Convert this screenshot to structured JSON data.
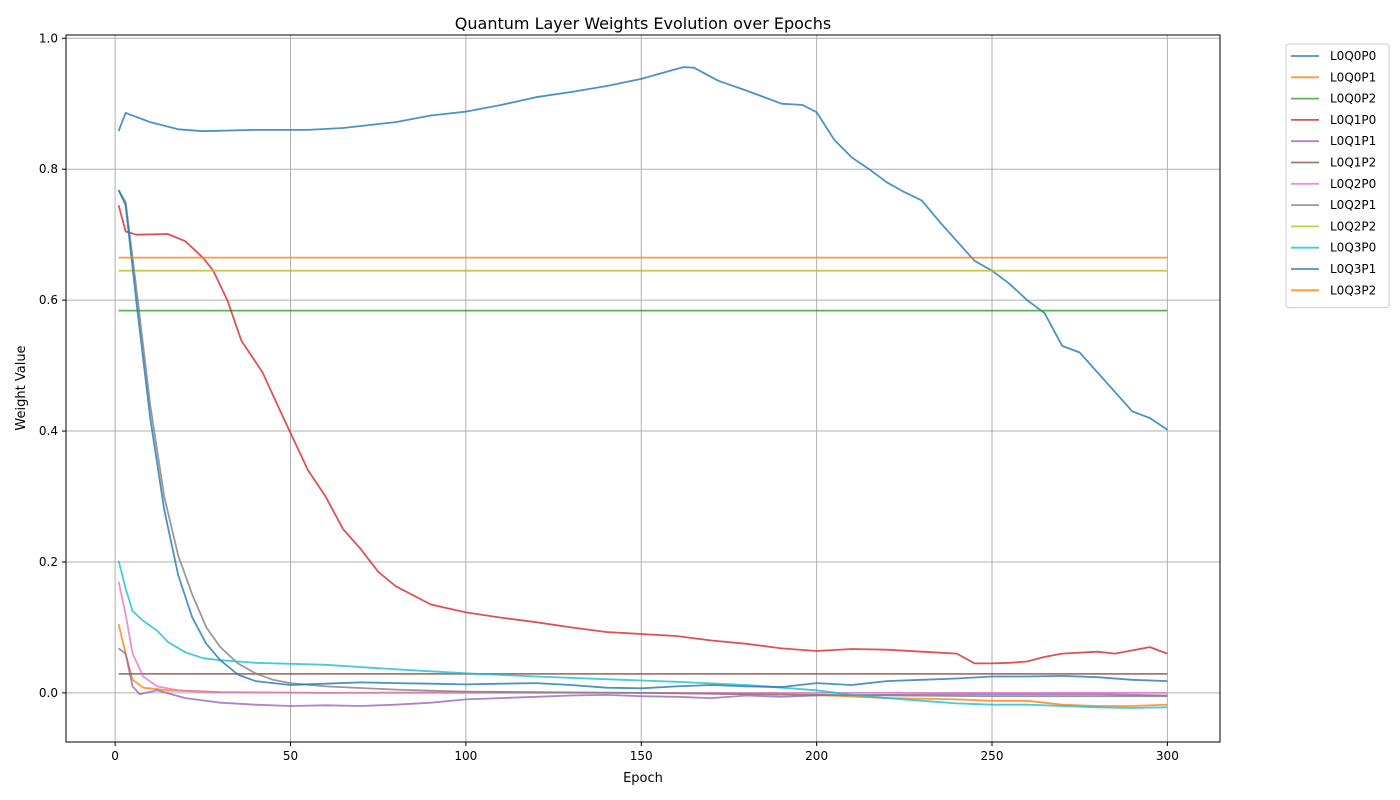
{
  "chart_data": {
    "type": "line",
    "title": "Quantum Layer Weights Evolution over Epochs",
    "xlabel": "Epoch",
    "ylabel": "Weight Value",
    "xlim": [
      -14,
      315
    ],
    "ylim": [
      -0.075,
      1.005
    ],
    "xticks": [
      0,
      50,
      100,
      150,
      200,
      250,
      300
    ],
    "yticks": [
      0.0,
      0.2,
      0.4,
      0.6,
      0.8,
      1.0
    ],
    "xtick_labels": [
      "0",
      "50",
      "100",
      "150",
      "200",
      "250",
      "300"
    ],
    "ytick_labels": [
      "0.0",
      "0.2",
      "0.4",
      "0.6",
      "0.8",
      "1.0"
    ],
    "grid": true,
    "legend_position": "outside-top-right",
    "series": [
      {
        "name": "L0Q0P0",
        "color": "#1f77b4",
        "points": [
          [
            1,
            0.858
          ],
          [
            3,
            0.886
          ],
          [
            10,
            0.872
          ],
          [
            18,
            0.861
          ],
          [
            25,
            0.858
          ],
          [
            40,
            0.86
          ],
          [
            55,
            0.86
          ],
          [
            65,
            0.863
          ],
          [
            80,
            0.872
          ],
          [
            90,
            0.882
          ],
          [
            100,
            0.888
          ],
          [
            110,
            0.898
          ],
          [
            120,
            0.91
          ],
          [
            130,
            0.918
          ],
          [
            140,
            0.927
          ],
          [
            150,
            0.938
          ],
          [
            158,
            0.95
          ],
          [
            162,
            0.956
          ],
          [
            165,
            0.955
          ],
          [
            172,
            0.935
          ],
          [
            180,
            0.92
          ],
          [
            190,
            0.9
          ],
          [
            196,
            0.898
          ],
          [
            200,
            0.887
          ],
          [
            205,
            0.845
          ],
          [
            210,
            0.818
          ],
          [
            215,
            0.8
          ],
          [
            220,
            0.78
          ],
          [
            225,
            0.765
          ],
          [
            230,
            0.752
          ],
          [
            235,
            0.72
          ],
          [
            240,
            0.69
          ],
          [
            245,
            0.66
          ],
          [
            250,
            0.645
          ],
          [
            255,
            0.625
          ],
          [
            260,
            0.6
          ],
          [
            265,
            0.58
          ],
          [
            270,
            0.53
          ],
          [
            275,
            0.52
          ],
          [
            280,
            0.49
          ],
          [
            285,
            0.46
          ],
          [
            290,
            0.43
          ],
          [
            295,
            0.42
          ],
          [
            300,
            0.402
          ]
        ]
      },
      {
        "name": "L0Q0P1",
        "color": "#ff7f0e",
        "points": [
          [
            1,
            0.105
          ],
          [
            3,
            0.06
          ],
          [
            5,
            0.02
          ],
          [
            8,
            0.008
          ],
          [
            15,
            0.004
          ],
          [
            30,
            0.001
          ],
          [
            60,
            0.0
          ],
          [
            100,
            0.001
          ],
          [
            150,
            0.0
          ],
          [
            200,
            -0.003
          ],
          [
            220,
            -0.008
          ],
          [
            240,
            -0.01
          ],
          [
            250,
            -0.012
          ],
          [
            260,
            -0.012
          ],
          [
            270,
            -0.018
          ],
          [
            280,
            -0.02
          ],
          [
            290,
            -0.02
          ],
          [
            300,
            -0.018
          ]
        ]
      },
      {
        "name": "L0Q0P2",
        "color": "#2ca02c",
        "points": [
          [
            1,
            0.584
          ],
          [
            300,
            0.584
          ]
        ]
      },
      {
        "name": "L0Q1P0",
        "color": "#d62728",
        "points": [
          [
            1,
            0.745
          ],
          [
            3,
            0.705
          ],
          [
            6,
            0.7
          ],
          [
            15,
            0.701
          ],
          [
            20,
            0.69
          ],
          [
            25,
            0.665
          ],
          [
            28,
            0.645
          ],
          [
            32,
            0.6
          ],
          [
            36,
            0.538
          ],
          [
            42,
            0.49
          ],
          [
            48,
            0.42
          ],
          [
            55,
            0.34
          ],
          [
            60,
            0.3
          ],
          [
            65,
            0.25
          ],
          [
            70,
            0.22
          ],
          [
            75,
            0.185
          ],
          [
            80,
            0.163
          ],
          [
            90,
            0.135
          ],
          [
            100,
            0.123
          ],
          [
            110,
            0.115
          ],
          [
            120,
            0.108
          ],
          [
            130,
            0.1
          ],
          [
            140,
            0.093
          ],
          [
            150,
            0.09
          ],
          [
            160,
            0.087
          ],
          [
            170,
            0.08
          ],
          [
            180,
            0.075
          ],
          [
            190,
            0.068
          ],
          [
            200,
            0.064
          ],
          [
            210,
            0.067
          ],
          [
            220,
            0.066
          ],
          [
            230,
            0.063
          ],
          [
            240,
            0.06
          ],
          [
            245,
            0.045
          ],
          [
            250,
            0.045
          ],
          [
            255,
            0.046
          ],
          [
            260,
            0.048
          ],
          [
            265,
            0.055
          ],
          [
            270,
            0.06
          ],
          [
            280,
            0.063
          ],
          [
            285,
            0.06
          ],
          [
            290,
            0.065
          ],
          [
            295,
            0.07
          ],
          [
            300,
            0.06
          ]
        ]
      },
      {
        "name": "L0Q1P1",
        "color": "#9467bd",
        "points": [
          [
            1,
            0.068
          ],
          [
            3,
            0.06
          ],
          [
            5,
            0.01
          ],
          [
            7,
            -0.002
          ],
          [
            12,
            0.004
          ],
          [
            20,
            -0.008
          ],
          [
            30,
            -0.015
          ],
          [
            40,
            -0.018
          ],
          [
            50,
            -0.02
          ],
          [
            60,
            -0.019
          ],
          [
            70,
            -0.02
          ],
          [
            80,
            -0.018
          ],
          [
            90,
            -0.015
          ],
          [
            100,
            -0.01
          ],
          [
            110,
            -0.008
          ],
          [
            120,
            -0.006
          ],
          [
            130,
            -0.004
          ],
          [
            140,
            -0.003
          ],
          [
            150,
            -0.005
          ],
          [
            160,
            -0.006
          ],
          [
            170,
            -0.008
          ],
          [
            180,
            -0.004
          ],
          [
            190,
            -0.006
          ],
          [
            200,
            -0.004
          ],
          [
            220,
            -0.003
          ],
          [
            240,
            -0.002
          ],
          [
            260,
            -0.002
          ],
          [
            280,
            -0.002
          ],
          [
            300,
            -0.004
          ]
        ]
      },
      {
        "name": "L0Q1P2",
        "color": "#8c564b",
        "points": [
          [
            1,
            0.029
          ],
          [
            300,
            0.029
          ]
        ]
      },
      {
        "name": "L0Q2P0",
        "color": "#e377c2",
        "points": [
          [
            1,
            0.17
          ],
          [
            3,
            0.12
          ],
          [
            5,
            0.06
          ],
          [
            8,
            0.025
          ],
          [
            12,
            0.01
          ],
          [
            18,
            0.004
          ],
          [
            30,
            0.001
          ],
          [
            60,
            0.0
          ],
          [
            300,
            0.0
          ]
        ]
      },
      {
        "name": "L0Q2P1",
        "color": "#7f7f7f",
        "points": [
          [
            1,
            0.768
          ],
          [
            3,
            0.75
          ],
          [
            6,
            0.62
          ],
          [
            10,
            0.44
          ],
          [
            14,
            0.3
          ],
          [
            18,
            0.21
          ],
          [
            22,
            0.15
          ],
          [
            26,
            0.1
          ],
          [
            30,
            0.07
          ],
          [
            35,
            0.045
          ],
          [
            40,
            0.03
          ],
          [
            45,
            0.02
          ],
          [
            50,
            0.015
          ],
          [
            60,
            0.01
          ],
          [
            80,
            0.005
          ],
          [
            100,
            0.002
          ],
          [
            150,
            0.0
          ],
          [
            200,
            -0.003
          ],
          [
            250,
            -0.005
          ],
          [
            300,
            -0.005
          ]
        ]
      },
      {
        "name": "L0Q2P2",
        "color": "#bcbd22",
        "points": [
          [
            1,
            0.645
          ],
          [
            300,
            0.645
          ]
        ]
      },
      {
        "name": "L0Q3P0",
        "color": "#17becf",
        "points": [
          [
            1,
            0.202
          ],
          [
            3,
            0.16
          ],
          [
            5,
            0.125
          ],
          [
            8,
            0.11
          ],
          [
            12,
            0.095
          ],
          [
            15,
            0.078
          ],
          [
            20,
            0.062
          ],
          [
            25,
            0.053
          ],
          [
            30,
            0.05
          ],
          [
            40,
            0.046
          ],
          [
            60,
            0.043
          ],
          [
            80,
            0.036
          ],
          [
            100,
            0.03
          ],
          [
            120,
            0.025
          ],
          [
            140,
            0.021
          ],
          [
            160,
            0.017
          ],
          [
            180,
            0.012
          ],
          [
            200,
            0.004
          ],
          [
            210,
            -0.003
          ],
          [
            220,
            -0.008
          ],
          [
            230,
            -0.012
          ],
          [
            240,
            -0.016
          ],
          [
            250,
            -0.018
          ],
          [
            260,
            -0.018
          ],
          [
            270,
            -0.02
          ],
          [
            280,
            -0.022
          ],
          [
            290,
            -0.023
          ],
          [
            300,
            -0.022
          ]
        ]
      },
      {
        "name": "L0Q3P1",
        "color": "#1f77b4",
        "points": [
          [
            1,
            0.768
          ],
          [
            3,
            0.745
          ],
          [
            6,
            0.6
          ],
          [
            10,
            0.42
          ],
          [
            14,
            0.28
          ],
          [
            18,
            0.18
          ],
          [
            22,
            0.115
          ],
          [
            26,
            0.075
          ],
          [
            30,
            0.05
          ],
          [
            35,
            0.028
          ],
          [
            40,
            0.018
          ],
          [
            50,
            0.012
          ],
          [
            60,
            0.014
          ],
          [
            70,
            0.016
          ],
          [
            80,
            0.015
          ],
          [
            90,
            0.014
          ],
          [
            100,
            0.013
          ],
          [
            110,
            0.014
          ],
          [
            120,
            0.015
          ],
          [
            130,
            0.012
          ],
          [
            140,
            0.008
          ],
          [
            150,
            0.007
          ],
          [
            160,
            0.01
          ],
          [
            170,
            0.012
          ],
          [
            180,
            0.01
          ],
          [
            190,
            0.009
          ],
          [
            200,
            0.015
          ],
          [
            210,
            0.012
          ],
          [
            220,
            0.018
          ],
          [
            230,
            0.02
          ],
          [
            240,
            0.022
          ],
          [
            250,
            0.025
          ],
          [
            260,
            0.025
          ],
          [
            270,
            0.026
          ],
          [
            280,
            0.024
          ],
          [
            290,
            0.02
          ],
          [
            300,
            0.018
          ]
        ]
      },
      {
        "name": "L0Q3P2",
        "color": "#ff7f0e",
        "points": [
          [
            1,
            0.665
          ],
          [
            300,
            0.665
          ]
        ]
      }
    ]
  }
}
